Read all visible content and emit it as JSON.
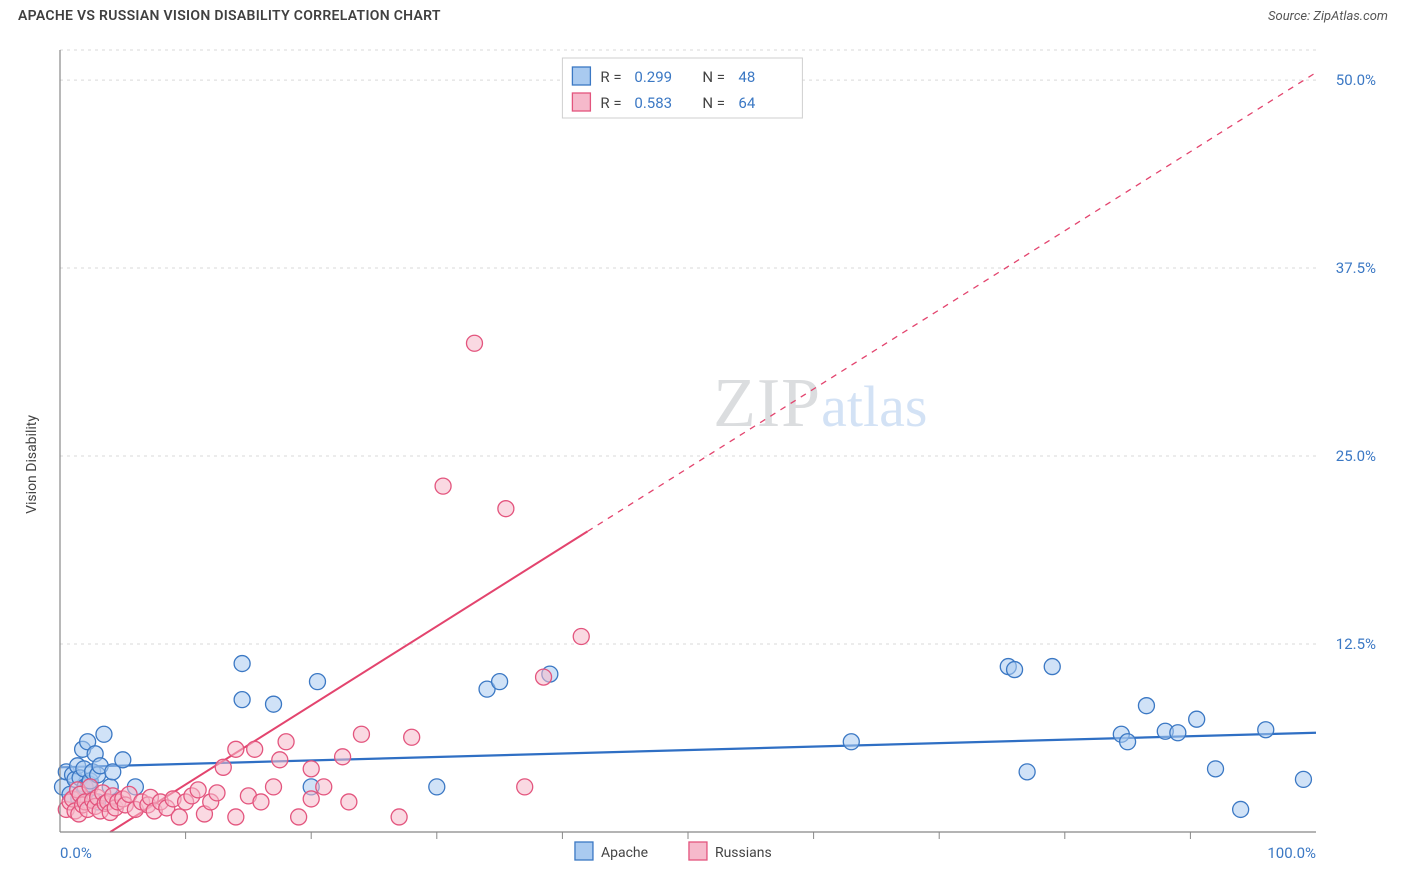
{
  "title": "APACHE VS RUSSIAN VISION DISABILITY CORRELATION CHART",
  "source": "Source: ZipAtlas.com",
  "watermark": {
    "part1": "ZIP",
    "part2": "atlas"
  },
  "chart": {
    "type": "scatter",
    "background_color": "#ffffff",
    "grid_color": "#d9d9d9",
    "grid_dash": "3,4",
    "axis_line_color": "#888888",
    "tick_color": "#888888",
    "ylabel": "Vision Disability",
    "ylabel_fontsize": 14,
    "xlim": [
      0,
      100
    ],
    "ylim": [
      0,
      52
    ],
    "x_ticks": [
      0,
      100
    ],
    "x_tick_labels": [
      "0.0%",
      "100.0%"
    ],
    "x_minor_ticks": [
      10,
      20,
      30,
      40,
      50,
      60,
      70,
      80,
      90
    ],
    "y_ticks": [
      12.5,
      25.0,
      37.5,
      50.0
    ],
    "y_tick_labels": [
      "12.5%",
      "25.0%",
      "37.5%",
      "50.0%"
    ],
    "legend_top": {
      "rows": [
        {
          "swatch_fill": "#a9caf0",
          "swatch_stroke": "#3b78c4",
          "r_label": "R =",
          "r_value": "0.299",
          "n_label": "N =",
          "n_value": "48"
        },
        {
          "swatch_fill": "#f6b9cb",
          "swatch_stroke": "#e3557e",
          "r_label": "R =",
          "r_value": "0.583",
          "n_label": "N =",
          "n_value": "64"
        }
      ]
    },
    "legend_bottom": {
      "items": [
        {
          "swatch_fill": "#a9caf0",
          "swatch_stroke": "#3b78c4",
          "label": "Apache"
        },
        {
          "swatch_fill": "#f6b9cb",
          "swatch_stroke": "#e3557e",
          "label": "Russians"
        }
      ]
    },
    "series": [
      {
        "name": "Apache",
        "marker_fill": "#a9caf0",
        "marker_stroke": "#3b78c4",
        "marker_fill_opacity": 0.55,
        "marker_stroke_width": 1.3,
        "marker_radius": 8,
        "trend": {
          "x1": 0,
          "y1": 4.3,
          "x2": 100,
          "y2": 6.6,
          "color": "#2f6fc4",
          "width": 2.2,
          "dash_after_x": null
        },
        "points": [
          [
            0.2,
            3.0
          ],
          [
            0.5,
            4.0
          ],
          [
            0.8,
            2.5
          ],
          [
            1.0,
            3.8
          ],
          [
            1.2,
            3.5
          ],
          [
            1.4,
            4.4
          ],
          [
            1.5,
            2.2
          ],
          [
            1.6,
            3.6
          ],
          [
            1.8,
            5.5
          ],
          [
            1.9,
            4.2
          ],
          [
            2.0,
            3.0
          ],
          [
            2.2,
            6.0
          ],
          [
            2.3,
            3.2
          ],
          [
            2.4,
            3.4
          ],
          [
            2.6,
            4.0
          ],
          [
            2.8,
            5.2
          ],
          [
            3.0,
            2.0
          ],
          [
            3.0,
            3.8
          ],
          [
            3.2,
            4.4
          ],
          [
            3.5,
            6.5
          ],
          [
            4.0,
            3.0
          ],
          [
            4.2,
            4.0
          ],
          [
            5.0,
            4.8
          ],
          [
            6.0,
            3.0
          ],
          [
            14.5,
            11.2
          ],
          [
            14.5,
            8.8
          ],
          [
            17.0,
            8.5
          ],
          [
            20.0,
            3.0
          ],
          [
            20.5,
            10.0
          ],
          [
            30.0,
            3.0
          ],
          [
            34.0,
            9.5
          ],
          [
            35.0,
            10.0
          ],
          [
            39.0,
            10.5
          ],
          [
            63.0,
            6.0
          ],
          [
            75.5,
            11.0
          ],
          [
            76.0,
            10.8
          ],
          [
            77.0,
            4.0
          ],
          [
            79.0,
            11.0
          ],
          [
            84.5,
            6.5
          ],
          [
            85.0,
            6.0
          ],
          [
            86.5,
            8.4
          ],
          [
            88.0,
            6.7
          ],
          [
            89.0,
            6.6
          ],
          [
            90.5,
            7.5
          ],
          [
            92.0,
            4.2
          ],
          [
            94.0,
            1.5
          ],
          [
            96.0,
            6.8
          ],
          [
            99.0,
            3.5
          ]
        ]
      },
      {
        "name": "Russians",
        "marker_fill": "#f6b9cb",
        "marker_stroke": "#e3557e",
        "marker_fill_opacity": 0.55,
        "marker_stroke_width": 1.3,
        "marker_radius": 8,
        "trend": {
          "x1": 4,
          "y1": 0,
          "x2": 100,
          "y2": 50.5,
          "color": "#e3446e",
          "width": 2.0,
          "dash_after_x": 42
        },
        "points": [
          [
            0.5,
            1.5
          ],
          [
            0.8,
            2.0
          ],
          [
            1.0,
            2.2
          ],
          [
            1.2,
            1.4
          ],
          [
            1.4,
            2.8
          ],
          [
            1.5,
            1.2
          ],
          [
            1.6,
            2.5
          ],
          [
            1.8,
            1.8
          ],
          [
            2.0,
            2.0
          ],
          [
            2.2,
            1.5
          ],
          [
            2.4,
            3.0
          ],
          [
            2.6,
            2.1
          ],
          [
            2.8,
            1.7
          ],
          [
            3.0,
            2.3
          ],
          [
            3.2,
            1.4
          ],
          [
            3.4,
            2.6
          ],
          [
            3.6,
            1.9
          ],
          [
            3.8,
            2.0
          ],
          [
            4.0,
            1.3
          ],
          [
            4.2,
            2.4
          ],
          [
            4.4,
            1.6
          ],
          [
            4.6,
            2.0
          ],
          [
            5.0,
            2.2
          ],
          [
            5.2,
            1.8
          ],
          [
            5.5,
            2.5
          ],
          [
            6.0,
            1.5
          ],
          [
            6.5,
            2.0
          ],
          [
            7.0,
            1.8
          ],
          [
            7.2,
            2.3
          ],
          [
            7.5,
            1.4
          ],
          [
            8.0,
            2.0
          ],
          [
            8.5,
            1.6
          ],
          [
            9.0,
            2.2
          ],
          [
            9.5,
            1.0
          ],
          [
            10.0,
            2.0
          ],
          [
            10.5,
            2.4
          ],
          [
            11.0,
            2.8
          ],
          [
            11.5,
            1.2
          ],
          [
            12.0,
            2.0
          ],
          [
            12.5,
            2.6
          ],
          [
            13.0,
            4.3
          ],
          [
            14.0,
            5.5
          ],
          [
            14.0,
            1.0
          ],
          [
            15.0,
            2.4
          ],
          [
            15.5,
            5.5
          ],
          [
            16.0,
            2.0
          ],
          [
            17.0,
            3.0
          ],
          [
            17.5,
            4.8
          ],
          [
            18.0,
            6.0
          ],
          [
            19.0,
            1.0
          ],
          [
            20.0,
            2.2
          ],
          [
            20.0,
            4.2
          ],
          [
            21.0,
            3.0
          ],
          [
            22.5,
            5.0
          ],
          [
            23.0,
            2.0
          ],
          [
            24.0,
            6.5
          ],
          [
            27.0,
            1.0
          ],
          [
            28.0,
            6.3
          ],
          [
            30.5,
            23.0
          ],
          [
            33.0,
            32.5
          ],
          [
            35.5,
            21.5
          ],
          [
            37.0,
            3.0
          ],
          [
            38.5,
            10.3
          ],
          [
            41.5,
            13.0
          ]
        ]
      }
    ]
  }
}
